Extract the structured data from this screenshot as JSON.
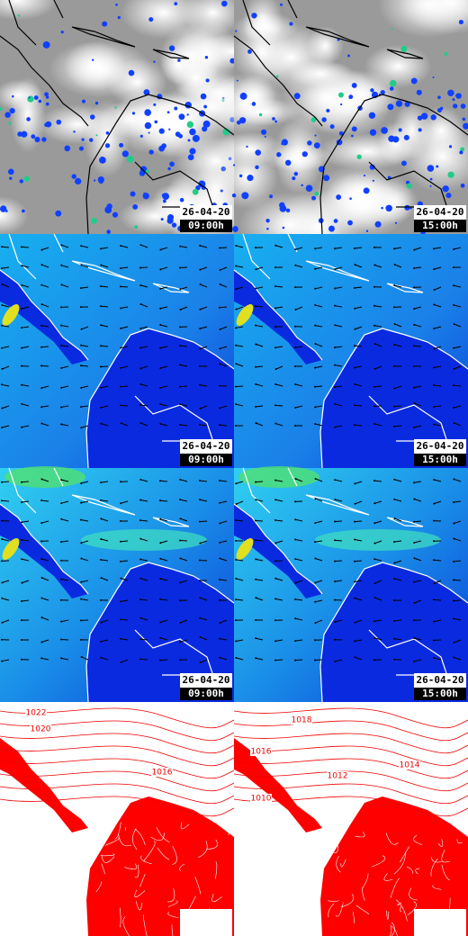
{
  "forecast_rows": [
    {
      "panels": [
        {
          "date": "26-04-20",
          "time": "09:00h"
        },
        {
          "date": "26-04-20",
          "time": "15:00h"
        }
      ]
    },
    {
      "panels": [
        {
          "date": "26-04-20",
          "time": "09:00h"
        },
        {
          "date": "26-04-20",
          "time": "15:00h"
        }
      ]
    },
    {
      "panels": [
        {
          "date": "26-04-20",
          "time": "09:00h"
        },
        {
          "date": "26-04-20",
          "time": "15:00h"
        }
      ]
    }
  ],
  "pressure_panels": [
    {
      "isobar_labels": [
        "1022",
        "1020",
        "1016"
      ]
    },
    {
      "isobar_labels": [
        "1018",
        "1016",
        "1012",
        "1014",
        "1010"
      ]
    }
  ]
}
